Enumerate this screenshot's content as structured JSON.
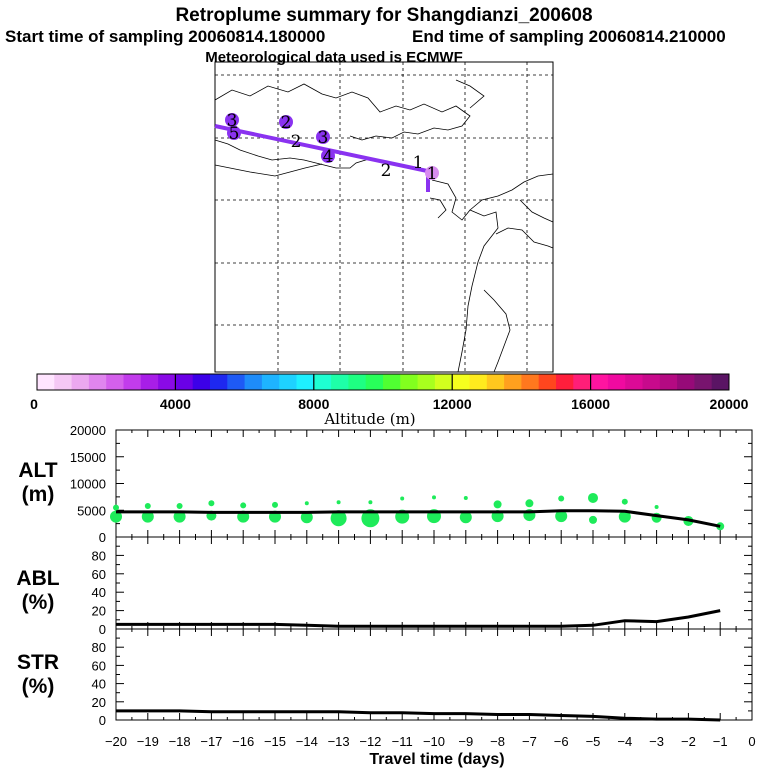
{
  "header": {
    "title": "Retroplume summary for Shangdianzi_200608",
    "start_label": "Start time of sampling 20060814.180000",
    "end_label": "End time of sampling 20060814.210000",
    "met_label": "Meteorological data used is ECMWF"
  },
  "colorbar": {
    "label": "Altitude (m)",
    "ticks": [
      "0",
      "4000",
      "8000",
      "12000",
      "16000",
      "20000"
    ],
    "tick_values": [
      0,
      4000,
      8000,
      12000,
      16000,
      20000
    ],
    "colors": [
      "#ffe5ff",
      "#f5c8f5",
      "#eba8f0",
      "#e085ee",
      "#d460ec",
      "#c23cec",
      "#a81ee8",
      "#8a0ae6",
      "#6a00e6",
      "#3c00e8",
      "#1e28f0",
      "#1e5af5",
      "#1e8cfa",
      "#1eb4ff",
      "#1ed2ff",
      "#1ef0ff",
      "#1effd2",
      "#1effa8",
      "#1eff82",
      "#28ff5a",
      "#50ff32",
      "#82ff1e",
      "#a8ff1e",
      "#d2ff1e",
      "#f5ff1e",
      "#ffeb1e",
      "#ffc81e",
      "#ffa01e",
      "#ff781e",
      "#ff461e",
      "#ff1e3c",
      "#ff1e78",
      "#ff14a0",
      "#f00aa0",
      "#dc0a96",
      "#c80a8c",
      "#b40a82",
      "#960a78",
      "#78146e",
      "#5a1464"
    ]
  },
  "map": {
    "trajectory_color": "#8a32f0",
    "markers": [
      {
        "text": "3",
        "bubble": true
      },
      {
        "text": "5",
        "bubble": true
      },
      {
        "text": "2",
        "bubble": true
      },
      {
        "text": "2",
        "bubble": false
      },
      {
        "text": "3",
        "bubble": true
      },
      {
        "text": "4",
        "bubble": true
      },
      {
        "text": "2",
        "bubble": false
      },
      {
        "text": "1",
        "bubble": false
      },
      {
        "text": "1",
        "bubble": true
      }
    ]
  },
  "panels": {
    "alt_label": "ALT",
    "alt_unit": "(m)",
    "abl_label": "ABL",
    "abl_unit": "(%)",
    "str_label": "STR",
    "str_unit": "(%)",
    "alt_ticks": [
      "0",
      "5000",
      "10000",
      "15000",
      "20000"
    ],
    "pct_ticks": [
      "0",
      "20",
      "40",
      "60",
      "80"
    ],
    "x_ticks": [
      "-20",
      "-19",
      "-18",
      "-17",
      "-16",
      "-15",
      "-14",
      "-13",
      "-12",
      "-11",
      "-10",
      "-9",
      "-8",
      "-7",
      "-6",
      "-5",
      "-4",
      "-3",
      "-2",
      "-1",
      "0"
    ],
    "xlabel": "Travel time (days)",
    "bubble_color": "#1eeb5a",
    "line_color": "#000000"
  },
  "chart_data": [
    {
      "type": "line",
      "title": "ALT",
      "ylabel": "(m)",
      "xlabel": "Travel time (days)",
      "xlim": [
        -20,
        0
      ],
      "ylim": [
        0,
        20000
      ],
      "x": [
        -20,
        -19,
        -18,
        -17,
        -16,
        -15,
        -14,
        -13,
        -12,
        -11,
        -10,
        -9,
        -8,
        -7,
        -6,
        -5,
        -4,
        -3,
        -2,
        -1
      ],
      "values": [
        4700,
        4700,
        4700,
        4600,
        4600,
        4600,
        4600,
        4700,
        4700,
        4700,
        4700,
        4700,
        4700,
        4700,
        4900,
        4900,
        4800,
        4000,
        3200,
        2000
      ],
      "scatter": [
        {
          "x": -20,
          "y": 3800,
          "size": 6
        },
        {
          "x": -20,
          "y": 5500,
          "size": 3
        },
        {
          "x": -19,
          "y": 3800,
          "size": 6
        },
        {
          "x": -19,
          "y": 5800,
          "size": 3
        },
        {
          "x": -18,
          "y": 3800,
          "size": 6
        },
        {
          "x": -18,
          "y": 5800,
          "size": 3
        },
        {
          "x": -17,
          "y": 4000,
          "size": 5
        },
        {
          "x": -17,
          "y": 6300,
          "size": 3
        },
        {
          "x": -16,
          "y": 3800,
          "size": 6
        },
        {
          "x": -16,
          "y": 5900,
          "size": 3
        },
        {
          "x": -15,
          "y": 3800,
          "size": 6
        },
        {
          "x": -15,
          "y": 6000,
          "size": 3
        },
        {
          "x": -14,
          "y": 3700,
          "size": 6
        },
        {
          "x": -14,
          "y": 6300,
          "size": 2
        },
        {
          "x": -13,
          "y": 3500,
          "size": 8
        },
        {
          "x": -13,
          "y": 6500,
          "size": 2
        },
        {
          "x": -12,
          "y": 3500,
          "size": 9
        },
        {
          "x": -12,
          "y": 6500,
          "size": 2
        },
        {
          "x": -11,
          "y": 3800,
          "size": 7
        },
        {
          "x": -11,
          "y": 7200,
          "size": 2
        },
        {
          "x": -10,
          "y": 3900,
          "size": 7
        },
        {
          "x": -10,
          "y": 7400,
          "size": 2
        },
        {
          "x": -9,
          "y": 3700,
          "size": 6
        },
        {
          "x": -9,
          "y": 7300,
          "size": 2
        },
        {
          "x": -8,
          "y": 3900,
          "size": 6
        },
        {
          "x": -8,
          "y": 6100,
          "size": 4
        },
        {
          "x": -7,
          "y": 4100,
          "size": 6
        },
        {
          "x": -7,
          "y": 6300,
          "size": 4
        },
        {
          "x": -6,
          "y": 3900,
          "size": 6
        },
        {
          "x": -6,
          "y": 7200,
          "size": 3
        },
        {
          "x": -5,
          "y": 7300,
          "size": 5
        },
        {
          "x": -5,
          "y": 3200,
          "size": 4
        },
        {
          "x": -4,
          "y": 3800,
          "size": 6
        },
        {
          "x": -4,
          "y": 6600,
          "size": 3
        },
        {
          "x": -3,
          "y": 3600,
          "size": 5
        },
        {
          "x": -3,
          "y": 5600,
          "size": 2
        },
        {
          "x": -2,
          "y": 3000,
          "size": 5
        },
        {
          "x": -1,
          "y": 2000,
          "size": 4
        }
      ]
    },
    {
      "type": "line",
      "title": "ABL",
      "ylabel": "(%)",
      "xlim": [
        -20,
        0
      ],
      "ylim": [
        0,
        100
      ],
      "x": [
        -20,
        -19,
        -18,
        -17,
        -16,
        -15,
        -14,
        -13,
        -12,
        -11,
        -10,
        -9,
        -8,
        -7,
        -6,
        -5,
        -4,
        -3,
        -2,
        -1
      ],
      "values": [
        5,
        5,
        5,
        5,
        5,
        5,
        4,
        3,
        3,
        3,
        3,
        3,
        3,
        3,
        3,
        4,
        9,
        8,
        13,
        20
      ]
    },
    {
      "type": "line",
      "title": "STR",
      "ylabel": "(%)",
      "xlim": [
        -20,
        0
      ],
      "ylim": [
        0,
        100
      ],
      "x": [
        -20,
        -19,
        -18,
        -17,
        -16,
        -15,
        -14,
        -13,
        -12,
        -11,
        -10,
        -9,
        -8,
        -7,
        -6,
        -5,
        -4,
        -3,
        -2,
        -1
      ],
      "values": [
        10,
        10,
        10,
        9,
        9,
        9,
        9,
        9,
        8,
        8,
        7,
        7,
        6,
        6,
        5,
        4,
        2,
        1,
        1,
        0
      ]
    }
  ]
}
